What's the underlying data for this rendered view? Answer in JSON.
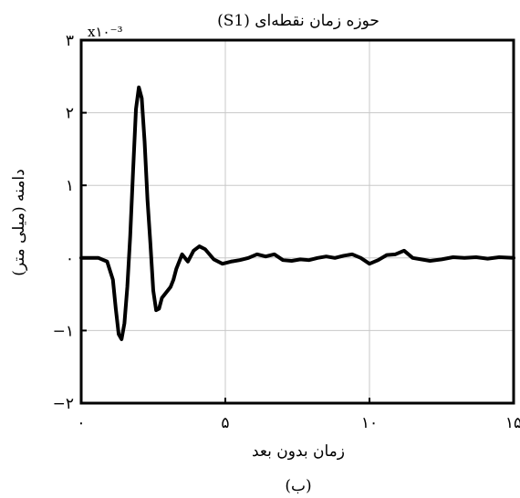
{
  "chart_data": {
    "type": "line",
    "title": "حوزه زمان نقطه‌ای (S1)",
    "xlabel": "زمان بدون بعد",
    "ylabel": "دامنه (میلی متر)",
    "y_multiplier_label": "x۱۰⁻³",
    "caption": "(ب)",
    "xlim": [
      0,
      15
    ],
    "ylim": [
      -0.002,
      0.003
    ],
    "grid": true,
    "x_ticks": [
      0,
      5,
      10,
      15
    ],
    "x_tick_labels": [
      "۰",
      "۵",
      "۱۰",
      "۱۵"
    ],
    "y_ticks": [
      -0.002,
      -0.001,
      0,
      0.001,
      0.002,
      0.003
    ],
    "y_tick_labels": [
      "−۲",
      "−۱",
      "۰",
      "۱",
      "۲",
      "۳"
    ],
    "series": [
      {
        "color": "#000000",
        "x": [
          0,
          0.6,
          0.9,
          1.1,
          1.2,
          1.3,
          1.4,
          1.5,
          1.6,
          1.7,
          1.8,
          1.9,
          2.0,
          2.1,
          2.2,
          2.3,
          2.4,
          2.5,
          2.6,
          2.7,
          2.8,
          2.9,
          3.0,
          3.1,
          3.2,
          3.3,
          3.5,
          3.7,
          3.9,
          4.1,
          4.3,
          4.6,
          4.9,
          5.2,
          5.5,
          5.8,
          6.1,
          6.4,
          6.7,
          7.0,
          7.3,
          7.6,
          7.9,
          8.2,
          8.5,
          8.8,
          9.1,
          9.4,
          9.7,
          10.0,
          10.3,
          10.6,
          10.9,
          11.2,
          11.5,
          11.8,
          12.1,
          12.5,
          12.9,
          13.3,
          13.7,
          14.1,
          14.5,
          15.0
        ],
        "y": [
          0,
          0,
          -5e-05,
          -0.0003,
          -0.0007,
          -0.00105,
          -0.00112,
          -0.0009,
          -0.0004,
          0.0003,
          0.0012,
          0.00205,
          0.00235,
          0.0022,
          0.0016,
          0.0008,
          0.0002,
          -0.00045,
          -0.00072,
          -0.0007,
          -0.00055,
          -0.0005,
          -0.00045,
          -0.0004,
          -0.0003,
          -0.00015,
          5e-05,
          -5e-05,
          0.0001,
          0.00016,
          0.00012,
          -2e-05,
          -8e-05,
          -5e-05,
          -3e-05,
          0.0,
          5e-05,
          2e-05,
          5e-05,
          -3e-05,
          -4e-05,
          -2e-05,
          -3e-05,
          0.0,
          2e-05,
          0.0,
          3e-05,
          5e-05,
          0.0,
          -8e-05,
          -3e-05,
          4e-05,
          5e-05,
          0.0001,
          0.0,
          -2e-05,
          -4e-05,
          -2e-05,
          1e-05,
          0.0,
          1e-05,
          -1e-05,
          1e-05,
          0.0
        ]
      }
    ]
  }
}
